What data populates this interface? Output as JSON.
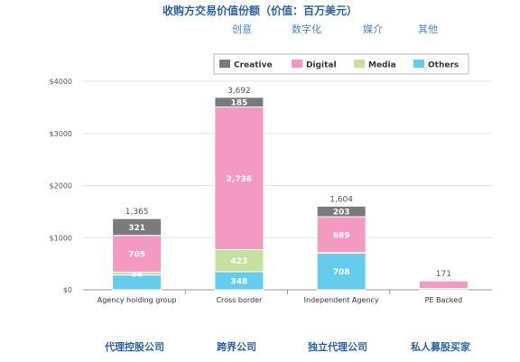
{
  "title": "收购方交易价值份额（价值：百万美元）",
  "cn_legend": [
    "创意",
    "数字化",
    "媒介",
    "其他"
  ],
  "colors": {
    "Creative": "#7a7a7a",
    "Digital": "#f49ac1",
    "Media": "#c6e0a0",
    "Others": "#66ccee"
  },
  "chart_data": {
    "type": "bar",
    "stacked": true,
    "categories": [
      "Agency holding group",
      "Cross border",
      "Independent Agency",
      "PE Backed"
    ],
    "series": [
      {
        "name": "Others",
        "values": [
          283,
          348,
          708,
          25
        ]
      },
      {
        "name": "Media",
        "values": [
          56,
          423,
          4,
          0
        ]
      },
      {
        "name": "Digital",
        "values": [
          705,
          2736,
          689,
          146
        ]
      },
      {
        "name": "Creative",
        "values": [
          321,
          185,
          203,
          0
        ]
      }
    ],
    "segment_labels": [
      {
        "Others": "",
        "Media": "56",
        "Digital": "705",
        "Creative": "321"
      },
      {
        "Others": "348",
        "Media": "423",
        "Digital": "2,736",
        "Creative": "185"
      },
      {
        "Others": "708",
        "Media": "",
        "Digital": "689",
        "Creative": "203"
      },
      {
        "Others": "",
        "Media": "",
        "Digital": "",
        "Creative": ""
      }
    ],
    "totals": [
      "1,365",
      "3,692",
      "1,604",
      "171"
    ],
    "legend_order": [
      "Creative",
      "Digital",
      "Media",
      "Others"
    ],
    "legend_position": "top-right",
    "ylim": [
      0,
      4000
    ],
    "yticks": [
      0,
      1000,
      2000,
      3000,
      4000
    ],
    "ytick_labels": [
      "$0",
      "$1000",
      "$2000",
      "$3000",
      "$4000"
    ],
    "grid": true
  },
  "bottom_labels": [
    "代理控股公司",
    "跨界公司",
    "独立代理公司",
    "私人募股买家"
  ]
}
